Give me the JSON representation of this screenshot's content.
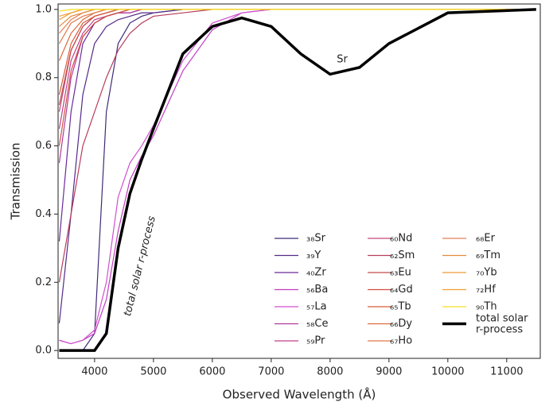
{
  "chart_data": {
    "type": "line",
    "xlabel": "Observed Wavelength (Å)",
    "ylabel": "Transmission",
    "xlim": [
      3380,
      11570
    ],
    "ylim": [
      -0.023,
      1.016
    ],
    "xticks": [
      4000,
      5000,
      6000,
      7000,
      8000,
      9000,
      10000,
      11000
    ],
    "yticks": [
      {
        "value": 0,
        "label": "0.0"
      },
      0.2,
      0.4,
      0.6,
      0.8,
      {
        "value": 1,
        "label": "1.0"
      }
    ],
    "annotations": [
      "Sr",
      "total solar r-process"
    ],
    "x": [
      3400,
      3600,
      3800,
      4000,
      4200,
      4400,
      4600,
      4800,
      5000,
      5500,
      6000,
      6500,
      7000,
      7500,
      8000,
      8500,
      9000,
      10000,
      11500
    ],
    "series": [
      {
        "name": "₃₈Sr",
        "color": "#3f2a78",
        "values": [
          0,
          0,
          0,
          0.05,
          0.7,
          0.9,
          0.96,
          0.98,
          0.99,
          1,
          1,
          1,
          1,
          1,
          1,
          1,
          1,
          1,
          1
        ]
      },
      {
        "name": "₃₉Y",
        "color": "#542a88",
        "values": [
          0.08,
          0.4,
          0.75,
          0.9,
          0.95,
          0.97,
          0.98,
          0.99,
          0.99,
          1,
          1,
          1,
          1,
          1,
          1,
          1,
          1,
          1,
          1
        ]
      },
      {
        "name": "₄₀Zr",
        "color": "#6a2a9a",
        "values": [
          0.32,
          0.7,
          0.9,
          0.96,
          0.98,
          0.99,
          0.99,
          1,
          1,
          1,
          1,
          1,
          1,
          1,
          1,
          1,
          1,
          1,
          1
        ]
      },
      {
        "name": "₅₆Ba",
        "color": "#c23cc2",
        "values": [
          0.03,
          0.02,
          0.03,
          0.05,
          0.15,
          0.35,
          0.5,
          0.57,
          0.63,
          0.82,
          0.94,
          0.99,
          1,
          1,
          1,
          1,
          1,
          1,
          1
        ]
      },
      {
        "name": "₅₇La",
        "color": "#cf4fcf",
        "values": [
          0.03,
          0.02,
          0.03,
          0.06,
          0.2,
          0.45,
          0.55,
          0.6,
          0.66,
          0.85,
          0.96,
          0.99,
          1,
          1,
          1,
          1,
          1,
          1,
          1
        ]
      },
      {
        "name": "₅₈Ce",
        "color": "#b0389e",
        "values": [
          0.55,
          0.8,
          0.92,
          0.96,
          0.98,
          0.99,
          0.99,
          1,
          1,
          1,
          1,
          1,
          1,
          1,
          1,
          1,
          1,
          1,
          1
        ]
      },
      {
        "name": "₅₉Pr",
        "color": "#c0408a",
        "values": [
          0.65,
          0.85,
          0.93,
          0.97,
          0.98,
          0.99,
          1,
          1,
          1,
          1,
          1,
          1,
          1,
          1,
          1,
          1,
          1,
          1,
          1
        ]
      },
      {
        "name": "₆₀Nd",
        "color": "#c04a7a",
        "values": [
          0.7,
          0.88,
          0.95,
          0.98,
          0.99,
          1,
          1,
          1,
          1,
          1,
          1,
          1,
          1,
          1,
          1,
          1,
          1,
          1,
          1
        ]
      },
      {
        "name": "₆₂Sm",
        "color": "#b83c5c",
        "values": [
          0.2,
          0.4,
          0.6,
          0.7,
          0.8,
          0.88,
          0.93,
          0.96,
          0.98,
          0.99,
          1,
          1,
          1,
          1,
          1,
          1,
          1,
          1,
          1
        ]
      },
      {
        "name": "₆₃Eu",
        "color": "#c24a4a",
        "values": [
          0.72,
          0.88,
          0.95,
          0.98,
          0.99,
          1,
          1,
          1,
          1,
          1,
          1,
          1,
          1,
          1,
          1,
          1,
          1,
          1,
          1
        ]
      },
      {
        "name": "₆₄Gd",
        "color": "#d05040",
        "values": [
          0.6,
          0.82,
          0.92,
          0.96,
          0.98,
          0.99,
          1,
          1,
          1,
          1,
          1,
          1,
          1,
          1,
          1,
          1,
          1,
          1,
          1
        ]
      },
      {
        "name": "₆₅Tb",
        "color": "#d85c38",
        "values": [
          0.75,
          0.9,
          0.96,
          0.98,
          0.99,
          1,
          1,
          1,
          1,
          1,
          1,
          1,
          1,
          1,
          1,
          1,
          1,
          1,
          1
        ]
      },
      {
        "name": "₆₆Dy",
        "color": "#dc6a3a",
        "values": [
          0.85,
          0.93,
          0.97,
          0.99,
          1,
          1,
          1,
          1,
          1,
          1,
          1,
          1,
          1,
          1,
          1,
          1,
          1,
          1,
          1
        ]
      },
      {
        "name": "₆₇Ho",
        "color": "#e07a48",
        "values": [
          0.9,
          0.96,
          0.98,
          0.99,
          1,
          1,
          1,
          1,
          1,
          1,
          1,
          1,
          1,
          1,
          1,
          1,
          1,
          1,
          1
        ]
      },
      {
        "name": "₆₈Er",
        "color": "#e08058",
        "values": [
          0.93,
          0.97,
          0.99,
          1,
          1,
          1,
          1,
          1,
          1,
          1,
          1,
          1,
          1,
          1,
          1,
          1,
          1,
          1,
          1
        ]
      },
      {
        "name": "₆₉Tm",
        "color": "#e58a3c",
        "values": [
          0.95,
          0.98,
          0.99,
          1,
          1,
          1,
          1,
          1,
          1,
          1,
          1,
          1,
          1,
          1,
          1,
          1,
          1,
          1,
          1
        ]
      },
      {
        "name": "₇₀Yb",
        "color": "#ec9a34",
        "values": [
          0.97,
          0.99,
          1,
          1,
          1,
          1,
          1,
          1,
          1,
          1,
          1,
          1,
          1,
          1,
          1,
          1,
          1,
          1,
          1
        ]
      },
      {
        "name": "₇₂Hf",
        "color": "#f0a030",
        "values": [
          0.98,
          0.99,
          1,
          1,
          1,
          1,
          1,
          1,
          1,
          1,
          1,
          1,
          1,
          1,
          1,
          1,
          1,
          1,
          1
        ]
      },
      {
        "name": "₉₀Th",
        "color": "#f5e020",
        "values": [
          0.995,
          1,
          1,
          1,
          1,
          1,
          1,
          1,
          1,
          1,
          1,
          1,
          1,
          1,
          1,
          1,
          1,
          1,
          1
        ]
      },
      {
        "name": "total solar r-process",
        "color": "#000000",
        "values": [
          0,
          0,
          0,
          0,
          0.05,
          0.3,
          0.46,
          0.56,
          0.65,
          0.87,
          0.95,
          0.975,
          0.95,
          0.87,
          0.81,
          0.83,
          0.9,
          0.99,
          1
        ]
      }
    ]
  }
}
